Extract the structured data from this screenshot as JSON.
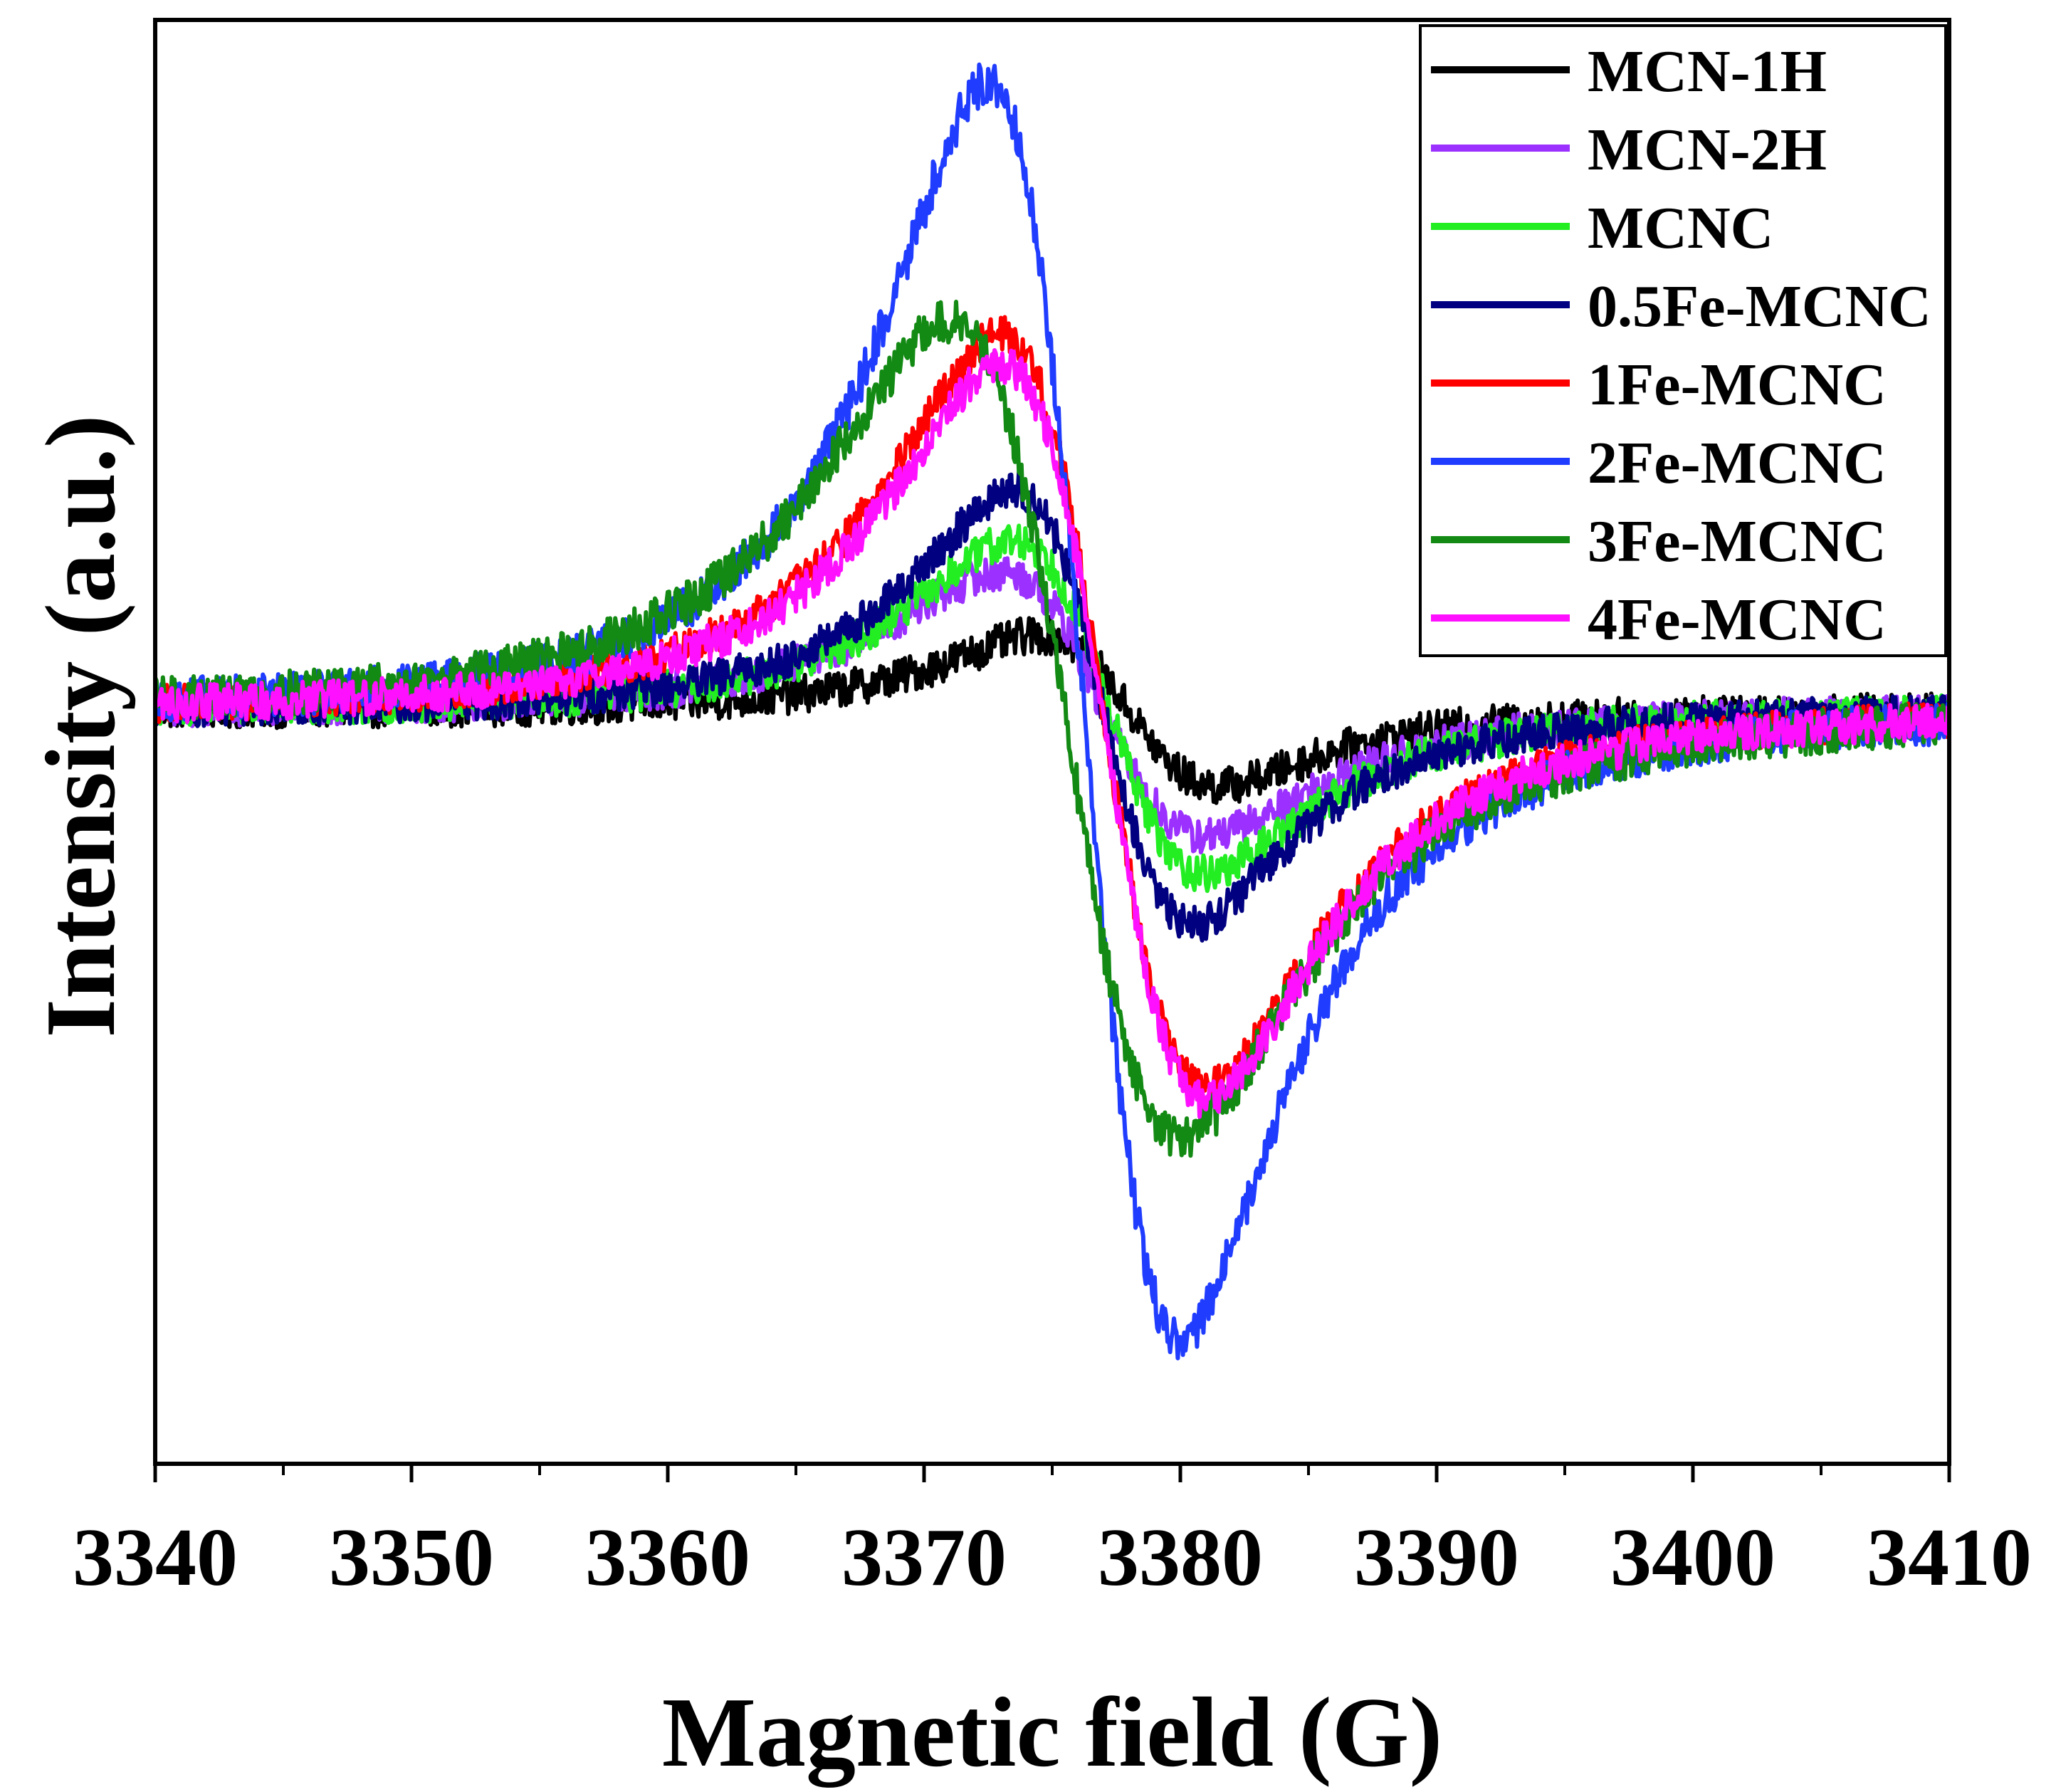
{
  "chart_data": {
    "type": "line",
    "title": "",
    "xlabel": "Magnetic field (G)",
    "ylabel": "Intensity (a.u.)",
    "xlim": [
      3340,
      3410
    ],
    "ylim": [
      -1.2,
      1.1
    ],
    "xticks": [
      3340,
      3350,
      3360,
      3370,
      3380,
      3390,
      3400,
      3410
    ],
    "xtick_labels": [
      "3340",
      "3350",
      "3360",
      "3370",
      "3380",
      "3390",
      "3400",
      "3410"
    ],
    "yticks_visible": false,
    "grid": false,
    "legend_position": "top-right",
    "series": [
      {
        "name": "MCN-1H",
        "color": "#000000",
        "peak_x": 3374.5,
        "peak_y": 0.12,
        "trough_x": 3381.5,
        "trough_y": -0.12,
        "noise": 0.03
      },
      {
        "name": "MCN-2H",
        "color": "#9b30ff",
        "peak_x": 3373.0,
        "peak_y": 0.22,
        "trough_x": 3381.0,
        "trough_y": -0.2,
        "noise": 0.03
      },
      {
        "name": "MCNC",
        "color": "#22ee22",
        "peak_x": 3373.5,
        "peak_y": 0.27,
        "trough_x": 3381.0,
        "trough_y": -0.26,
        "noise": 0.03
      },
      {
        "name": "0.5Fe-MCNC",
        "color": "#000080",
        "peak_x": 3373.5,
        "peak_y": 0.35,
        "trough_x": 3380.5,
        "trough_y": -0.34,
        "noise": 0.03
      },
      {
        "name": "1Fe-MCNC",
        "color": "#ff0000",
        "peak_x": 3373.0,
        "peak_y": 0.6,
        "trough_x": 3381.0,
        "trough_y": -0.6,
        "noise": 0.03
      },
      {
        "name": "2Fe-MCNC",
        "color": "#1f3cff",
        "peak_x": 3372.5,
        "peak_y": 1.0,
        "trough_x": 3380.0,
        "trough_y": -1.0,
        "noise": 0.035
      },
      {
        "name": "3Fe-MCNC",
        "color": "#138a13",
        "peak_x": 3371.0,
        "peak_y": 0.62,
        "trough_x": 3380.0,
        "trough_y": -0.68,
        "noise": 0.035
      },
      {
        "name": "4Fe-MCNC",
        "color": "#ff10ff",
        "peak_x": 3373.0,
        "peak_y": 0.55,
        "trough_x": 3381.0,
        "trough_y": -0.62,
        "noise": 0.03
      }
    ]
  }
}
